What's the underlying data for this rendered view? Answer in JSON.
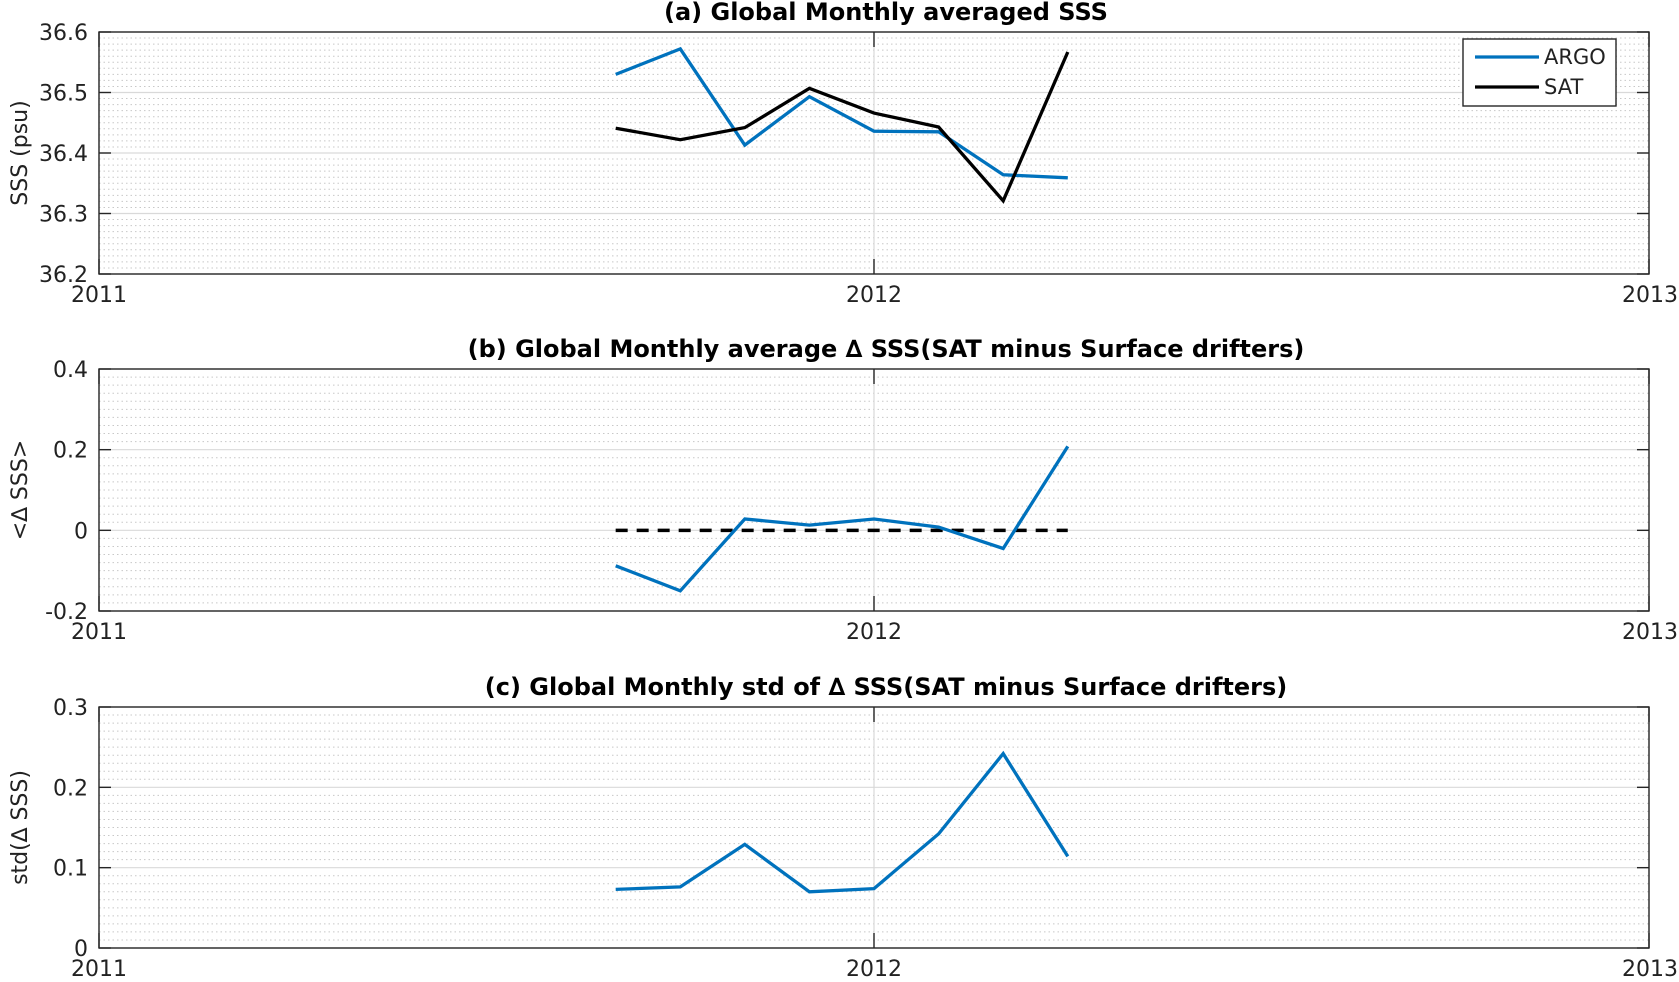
{
  "colors": {
    "argo": "#0072bd",
    "sat": "#000000",
    "zero_line": "#000000",
    "grid_major": "#d9d9d9",
    "grid_minor": "#c8c8c8"
  },
  "chart_data": [
    {
      "type": "line",
      "title": "(a) Global Monthly averaged SSS",
      "ylabel": "SSS (psu)",
      "xlabel": "",
      "xlim": [
        "2011-01-01",
        "2013-01-01"
      ],
      "ylim": [
        36.2,
        36.6
      ],
      "x_ticks": [
        "2011",
        "2012",
        "2013"
      ],
      "y_ticks": [
        "36.2",
        "36.3",
        "36.4",
        "36.5",
        "36.6"
      ],
      "grid": "on, minor dotted",
      "legend": {
        "position": "top-right",
        "entries": [
          "ARGO",
          "SAT"
        ]
      },
      "x": [
        "2011-09",
        "2011-10",
        "2011-11",
        "2011-12",
        "2012-01",
        "2012-02",
        "2012-03",
        "2012-04"
      ],
      "series": [
        {
          "name": "ARGO",
          "values": [
            36.53,
            36.572,
            36.413,
            36.493,
            36.436,
            36.435,
            36.364,
            36.359
          ]
        },
        {
          "name": "SAT",
          "values": [
            36.441,
            36.422,
            36.442,
            36.507,
            36.466,
            36.443,
            36.321,
            36.567
          ]
        }
      ]
    },
    {
      "type": "line",
      "title": "(b) Global Monthly average ∆ SSS(SAT minus Surface drifters)",
      "ylabel": "<∆ SSS>",
      "xlabel": "",
      "xlim": [
        "2011-01-01",
        "2013-01-01"
      ],
      "ylim": [
        -0.2,
        0.4
      ],
      "x_ticks": [
        "2011",
        "2012",
        "2013"
      ],
      "y_ticks": [
        "-0.2",
        "0",
        "0.2",
        "0.4"
      ],
      "grid": "on, minor dotted",
      "reference_line": {
        "y": 0,
        "style": "dashed",
        "x_range": [
          "2011-09",
          "2012-04"
        ]
      },
      "x": [
        "2011-09",
        "2011-10",
        "2011-11",
        "2011-12",
        "2012-01",
        "2012-02",
        "2012-03",
        "2012-04"
      ],
      "series": [
        {
          "values": [
            -0.088,
            -0.15,
            0.028,
            0.013,
            0.028,
            0.008,
            -0.045,
            0.208
          ]
        }
      ]
    },
    {
      "type": "line",
      "title": "(c) Global Monthly std of ∆ SSS(SAT minus Surface drifters)",
      "ylabel": "std(∆ SSS)",
      "xlabel": "",
      "xlim": [
        "2011-01-01",
        "2013-01-01"
      ],
      "ylim": [
        0,
        0.3
      ],
      "x_ticks": [
        "2011",
        "2012",
        "2013"
      ],
      "y_ticks": [
        "0",
        "0.1",
        "0.2",
        "0.3"
      ],
      "grid": "on, minor dotted",
      "x": [
        "2011-09",
        "2011-10",
        "2011-11",
        "2011-12",
        "2012-01",
        "2012-02",
        "2012-03",
        "2012-04"
      ],
      "series": [
        {
          "values": [
            0.073,
            0.076,
            0.129,
            0.07,
            0.074,
            0.142,
            0.242,
            0.114
          ]
        }
      ]
    }
  ]
}
